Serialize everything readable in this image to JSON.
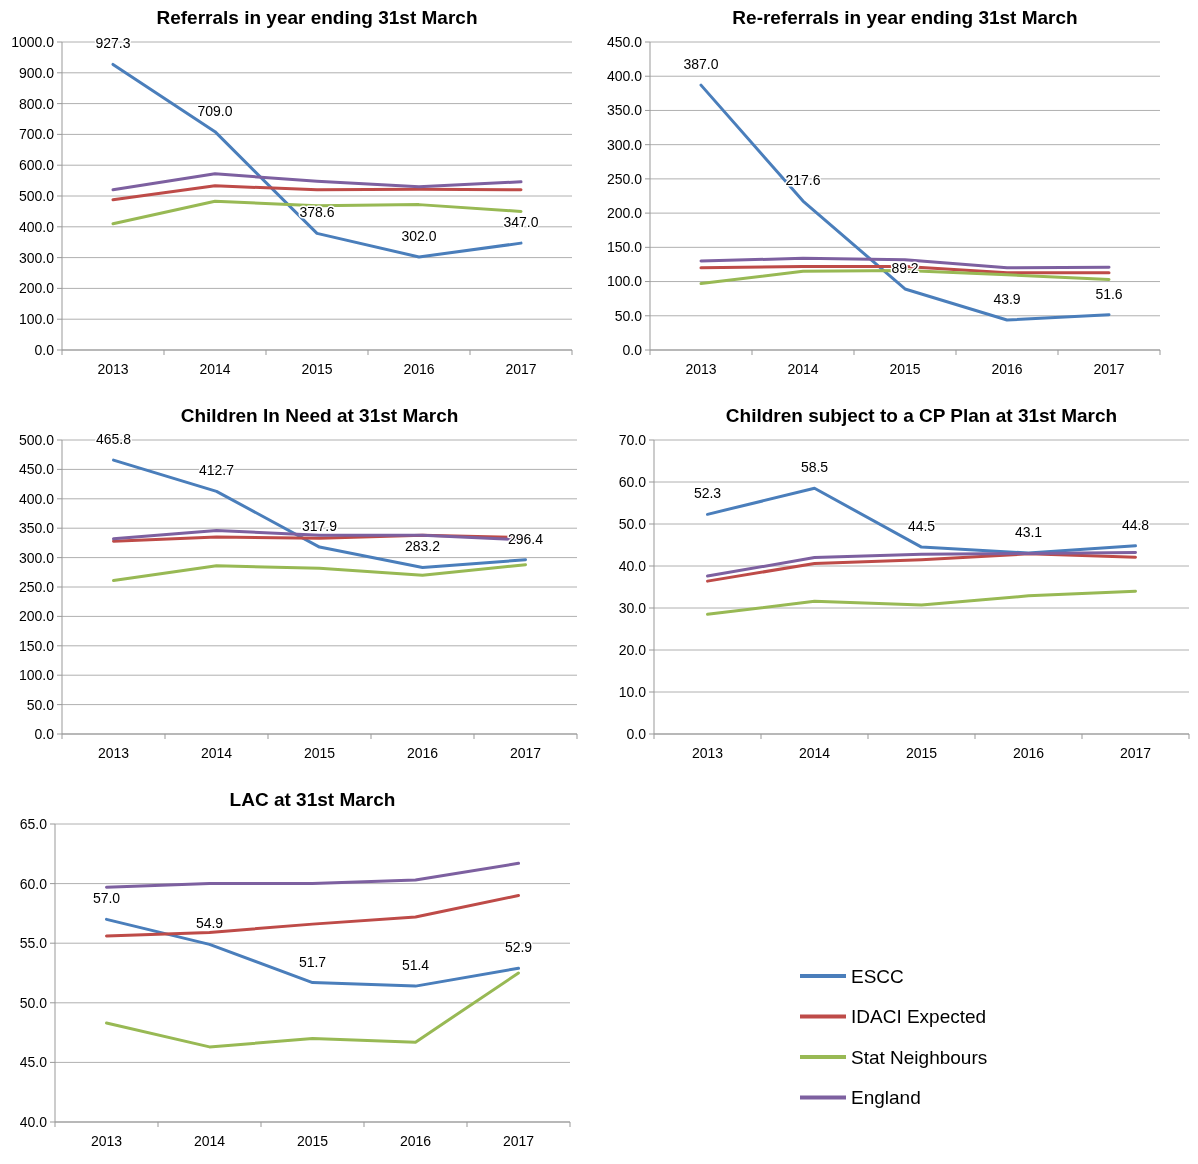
{
  "chart_data": [
    {
      "type": "line",
      "title": "Referrals in year ending 31st March",
      "categories": [
        "2013",
        "2014",
        "2015",
        "2016",
        "2017"
      ],
      "ylim": [
        0,
        1000
      ],
      "yticks": [
        {
          "value": 0,
          "label": "0.0"
        },
        {
          "value": 100,
          "label": "100.0"
        },
        {
          "value": 200,
          "label": "200.0"
        },
        {
          "value": 300,
          "label": "300.0"
        },
        {
          "value": 400,
          "label": "400.0"
        },
        {
          "value": 500,
          "label": "500.0"
        },
        {
          "value": 600,
          "label": "600.0"
        },
        {
          "value": 700,
          "label": "700.0"
        },
        {
          "value": 800,
          "label": "800.0"
        },
        {
          "value": 900,
          "label": "900.0"
        },
        {
          "value": 1000,
          "label": "1000.0"
        }
      ],
      "grid": "y",
      "legend": false,
      "marker": "none",
      "series": [
        {
          "color": "#4a7ebb",
          "values": [
            927.3,
            709.0,
            378.6,
            302.0,
            347.0
          ],
          "value_labels": [
            "927.3",
            "709.0",
            "378.6",
            "302.0",
            "347.0"
          ]
        },
        {
          "color": "#be4b48",
          "values": [
            488,
            533,
            520,
            522,
            520
          ]
        },
        {
          "color": "#98b954",
          "values": [
            410,
            483,
            468,
            472,
            450
          ]
        },
        {
          "color": "#7d60a0",
          "values": [
            520,
            572,
            548,
            530,
            546
          ]
        }
      ]
    },
    {
      "type": "line",
      "title": "Re-referrals in year ending 31st March",
      "categories": [
        "2013",
        "2014",
        "2015",
        "2016",
        "2017"
      ],
      "ylim": [
        0,
        450
      ],
      "yticks": [
        {
          "value": 0,
          "label": "0.0"
        },
        {
          "value": 50,
          "label": "50.0"
        },
        {
          "value": 100,
          "label": "100.0"
        },
        {
          "value": 150,
          "label": "150.0"
        },
        {
          "value": 200,
          "label": "200.0"
        },
        {
          "value": 250,
          "label": "250.0"
        },
        {
          "value": 300,
          "label": "300.0"
        },
        {
          "value": 350,
          "label": "350.0"
        },
        {
          "value": 400,
          "label": "400.0"
        },
        {
          "value": 450,
          "label": "450.0"
        }
      ],
      "grid": "y",
      "legend": false,
      "marker": "none",
      "series": [
        {
          "color": "#4a7ebb",
          "values": [
            387.0,
            217.6,
            89.2,
            43.9,
            51.6
          ],
          "value_labels": [
            "387.0",
            "217.6",
            "89.2",
            "43.9",
            "51.6"
          ]
        },
        {
          "color": "#be4b48",
          "values": [
            120,
            122,
            122,
            113,
            113
          ]
        },
        {
          "color": "#98b954",
          "values": [
            97,
            115,
            116,
            110,
            103
          ]
        },
        {
          "color": "#7d60a0",
          "values": [
            130,
            134,
            132,
            120,
            121
          ]
        }
      ]
    },
    {
      "type": "line",
      "title": "Children In Need at 31st March",
      "categories": [
        "2013",
        "2014",
        "2015",
        "2016",
        "2017"
      ],
      "ylim": [
        0,
        500
      ],
      "yticks": [
        {
          "value": 0,
          "label": "0.0"
        },
        {
          "value": 50,
          "label": "50.0"
        },
        {
          "value": 100,
          "label": "100.0"
        },
        {
          "value": 150,
          "label": "150.0"
        },
        {
          "value": 200,
          "label": "200.0"
        },
        {
          "value": 250,
          "label": "250.0"
        },
        {
          "value": 300,
          "label": "300.0"
        },
        {
          "value": 350,
          "label": "350.0"
        },
        {
          "value": 400,
          "label": "400.0"
        },
        {
          "value": 450,
          "label": "450.0"
        },
        {
          "value": 500,
          "label": "500.0"
        }
      ],
      "grid": "y",
      "legend": false,
      "marker": "none",
      "series": [
        {
          "color": "#4a7ebb",
          "values": [
            465.8,
            412.7,
            317.9,
            283.2,
            296.4
          ],
          "value_labels": [
            "465.8",
            "412.7",
            "317.9",
            "283.2",
            "296.4"
          ]
        },
        {
          "color": "#be4b48",
          "values": [
            328,
            335,
            333,
            338,
            334
          ]
        },
        {
          "color": "#98b954",
          "values": [
            261,
            286,
            282,
            270,
            288
          ]
        },
        {
          "color": "#7d60a0",
          "values": [
            332,
            346,
            338,
            338,
            330
          ]
        }
      ]
    },
    {
      "type": "line",
      "title": "Children subject to a CP Plan at 31st March",
      "categories": [
        "2013",
        "2014",
        "2015",
        "2016",
        "2017"
      ],
      "ylim": [
        0,
        70
      ],
      "yticks": [
        {
          "value": 0,
          "label": "0.0"
        },
        {
          "value": 10,
          "label": "10.0"
        },
        {
          "value": 20,
          "label": "20.0"
        },
        {
          "value": 30,
          "label": "30.0"
        },
        {
          "value": 40,
          "label": "40.0"
        },
        {
          "value": 50,
          "label": "50.0"
        },
        {
          "value": 60,
          "label": "60.0"
        },
        {
          "value": 70,
          "label": "70.0"
        }
      ],
      "grid": "y",
      "legend": false,
      "marker": "none",
      "series": [
        {
          "color": "#4a7ebb",
          "values": [
            52.3,
            58.5,
            44.5,
            43.1,
            44.8
          ],
          "value_labels": [
            "52.3",
            "58.5",
            "44.5",
            "43.1",
            "44.8"
          ]
        },
        {
          "color": "#be4b48",
          "values": [
            36.4,
            40.6,
            41.5,
            42.9,
            42.1
          ]
        },
        {
          "color": "#98b954",
          "values": [
            28.5,
            31.6,
            30.7,
            32.9,
            34.0
          ]
        },
        {
          "color": "#7d60a0",
          "values": [
            37.6,
            42.0,
            42.8,
            43.0,
            43.2
          ]
        }
      ]
    },
    {
      "type": "line",
      "title": "LAC at 31st March",
      "categories": [
        "2013",
        "2014",
        "2015",
        "2016",
        "2017"
      ],
      "ylim": [
        40,
        65
      ],
      "yticks": [
        {
          "value": 40,
          "label": "40.0"
        },
        {
          "value": 45,
          "label": "45.0"
        },
        {
          "value": 50,
          "label": "50.0"
        },
        {
          "value": 55,
          "label": "55.0"
        },
        {
          "value": 60,
          "label": "60.0"
        },
        {
          "value": 65,
          "label": "65.0"
        }
      ],
      "grid": "y",
      "legend": "right",
      "marker": "none",
      "series": [
        {
          "name": "ESCC",
          "color": "#4a7ebb",
          "values": [
            57.0,
            54.9,
            51.7,
            51.4,
            52.9
          ],
          "value_labels": [
            "57.0",
            "54.9",
            "51.7",
            "51.4",
            "52.9"
          ]
        },
        {
          "name": "IDACI Expected",
          "color": "#be4b48",
          "values": [
            55.6,
            55.9,
            56.6,
            57.2,
            59.0
          ]
        },
        {
          "name": "Stat Neighbours",
          "color": "#98b954",
          "values": [
            48.3,
            46.3,
            47.0,
            46.7,
            52.5
          ]
        },
        {
          "name": "England",
          "color": "#7d60a0",
          "values": [
            59.7,
            60.0,
            60.0,
            60.3,
            61.7
          ]
        }
      ]
    }
  ]
}
